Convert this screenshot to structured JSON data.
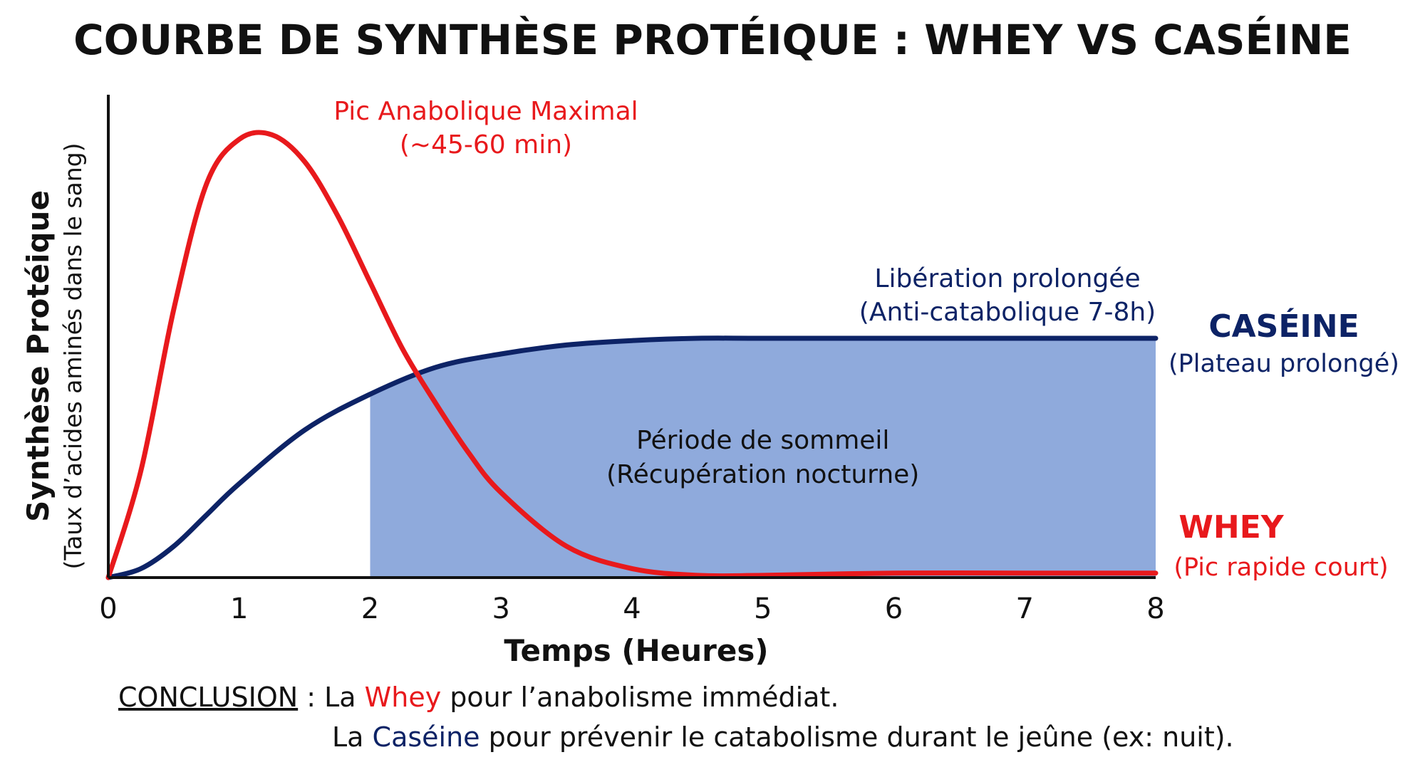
{
  "colors": {
    "whey": "#e8191c",
    "caseine": "#0d2366",
    "sleep_fill": "#8faadc",
    "axis": "#111111",
    "text": "#111111"
  },
  "chart_data": {
    "type": "line",
    "title": "COURBE DE SYNTHÈSE PROTÉIQUE : WHEY VS CASÉINE",
    "xlabel": "Temps (Heures)",
    "ylabel": "Synthèse Protéique",
    "ylabel_sub": "(Taux d’acides aminés dans le sang)",
    "xlim": [
      0,
      8
    ],
    "ylim": [
      0,
      1
    ],
    "x_ticks": [
      "0",
      "1",
      "2",
      "3",
      "4",
      "5",
      "6",
      "7",
      "8"
    ],
    "grid": false,
    "series": [
      {
        "name": "WHEY",
        "description": "(Pic rapide court)",
        "color": "#e8191c",
        "x": [
          0,
          0.25,
          0.5,
          0.75,
          1.0,
          1.25,
          1.5,
          1.75,
          2.0,
          2.25,
          2.5,
          2.75,
          3.0,
          3.5,
          4.0,
          4.5,
          5,
          6,
          7,
          8
        ],
        "values": [
          0,
          0.24,
          0.6,
          0.88,
          0.98,
          0.99,
          0.93,
          0.81,
          0.66,
          0.51,
          0.39,
          0.28,
          0.19,
          0.07,
          0.02,
          0.005,
          0.005,
          0.01,
          0.01,
          0.01
        ]
      },
      {
        "name": "CASÉINE",
        "description": "(Plateau prolongé)",
        "color": "#0d2366",
        "x": [
          0,
          0.25,
          0.5,
          0.75,
          1.0,
          1.5,
          2.0,
          2.5,
          3.0,
          3.5,
          4.0,
          4.5,
          5,
          6,
          7,
          8
        ],
        "values": [
          0,
          0.02,
          0.07,
          0.14,
          0.21,
          0.33,
          0.41,
          0.47,
          0.5,
          0.52,
          0.53,
          0.535,
          0.535,
          0.535,
          0.535,
          0.535
        ]
      }
    ],
    "shaded_region": {
      "x_start": 2,
      "x_end": 8,
      "label_line1": "Période de sommeil",
      "label_line2": "(Récupération nocturne)"
    },
    "annotations": [
      {
        "id": "peak",
        "line1": "Pic Anabolique Maximal",
        "line2": "(~45-60 min)",
        "color": "#e8191c"
      },
      {
        "id": "release",
        "line1": "Libération prolongée",
        "line2": "(Anti-catabolique 7-8h)",
        "color": "#0d2366"
      }
    ]
  },
  "conclusion": {
    "label": "CONCLUSION",
    "separator": " : La ",
    "line1_highlight": "Whey",
    "line1_rest": " pour l’anabolisme immédiat.",
    "line2_prefix": "La ",
    "line2_highlight": "Caséine",
    "line2_rest": " pour prévenir le catabolisme durant le jeûne (ex: nuit)."
  }
}
